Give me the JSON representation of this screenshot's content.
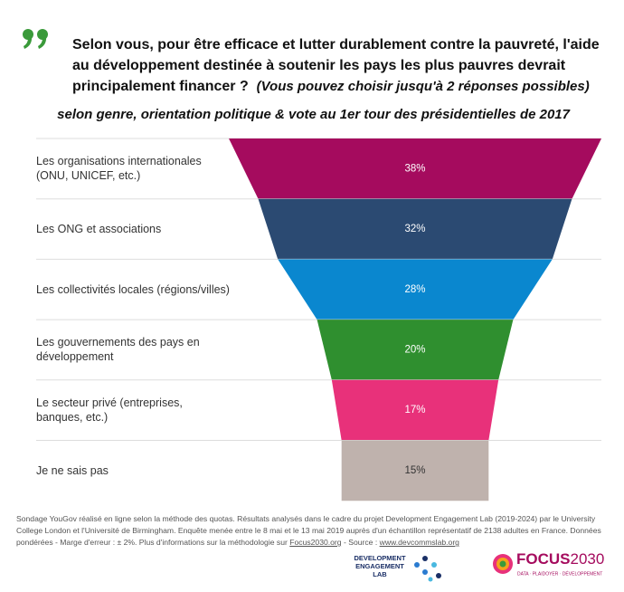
{
  "chart_data": {
    "type": "funnel",
    "title": "Selon vous, pour être efficace et lutter durablement contre la pauvreté, l'aide au développement destinée à soutenir les pays les plus pauvres devrait principalement financer ?",
    "title_note": "(Vous pouvez choisir jusqu'à 2 réponses possibles)",
    "subtitle": "selon genre, orientation politique & vote au 1er tour des présidentielles de 2017",
    "categories": [
      "Les organisations internationales (ONU, UNICEF, etc.)",
      "Les ONG et associations",
      "Les collectivités locales (régions/villes)",
      "Les gouvernements des pays en développement",
      "Le secteur privé (entreprises, banques, etc.)",
      "Je ne sais pas"
    ],
    "values": [
      38,
      32,
      28,
      20,
      17,
      15
    ],
    "value_labels": [
      "38%",
      "32%",
      "28%",
      "20%",
      "17%",
      "15%"
    ],
    "colors": [
      "#a50b5e",
      "#2b4a72",
      "#0a87cf",
      "#2f8f2f",
      "#e8317a",
      "#bfb2ad"
    ],
    "footnote": "Sondage YouGov réalisé en ligne selon la méthode des quotas. Résultats analysés dans le cadre du projet Development Engagement Lab (2019-2024) par le University College London et l'Université de Birmingham. Enquête menée entre le 8 mai et le 13 mai 2019 auprès d'un échantillon représentatif de 2138 adultes en France. Données pondérées - Marge d'erreur : ± 2%. Plus d'informations sur la méthodologie sur ",
    "footnote_link1": "Focus2030.org",
    "footnote_mid": " - Source : ",
    "footnote_link2": "www.devcommslab.org",
    "logo1": [
      "DEVELOPMENT",
      "ENGAGEMENT",
      "LAB"
    ],
    "logo2_a": "FOCUS",
    "logo2_b": "2030",
    "logo2_tagline": "DATA · PLAIDOYER · DÉVELOPPEMENT"
  }
}
